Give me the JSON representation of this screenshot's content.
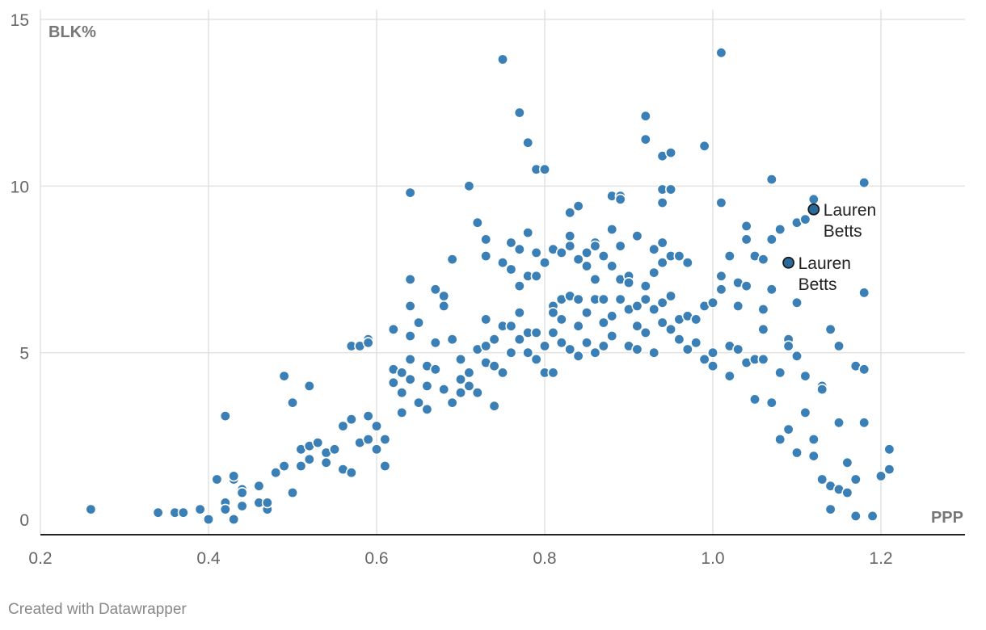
{
  "credit": "Created with Datawrapper",
  "chart_data": {
    "type": "scatter",
    "title": "",
    "xlabel": "PPP",
    "ylabel": "BLK%",
    "xlim": [
      0.2,
      1.3
    ],
    "ylim": [
      0,
      15
    ],
    "x_ticks": [
      "0.2",
      "0.4",
      "0.6",
      "0.8",
      "1.0",
      "1.2"
    ],
    "y_ticks": [
      "0",
      "5",
      "10",
      "15"
    ],
    "grid": true,
    "point_color": "#3a7fb5",
    "highlight_color": "#2a6a9a",
    "highlighted": [
      {
        "label": "Lauren Betts",
        "x": 1.12,
        "y": 9.3
      },
      {
        "label": "Lauren Betts",
        "x": 1.09,
        "y": 7.7
      }
    ],
    "points": [
      [
        0.26,
        0.3
      ],
      [
        0.34,
        0.2
      ],
      [
        0.36,
        0.2
      ],
      [
        0.37,
        0.2
      ],
      [
        0.39,
        0.3
      ],
      [
        0.4,
        0.0
      ],
      [
        0.41,
        1.2
      ],
      [
        0.42,
        3.1
      ],
      [
        0.42,
        0.5
      ],
      [
        0.42,
        0.3
      ],
      [
        0.43,
        1.2
      ],
      [
        0.43,
        1.3
      ],
      [
        0.43,
        0.0
      ],
      [
        0.44,
        0.9
      ],
      [
        0.44,
        0.8
      ],
      [
        0.44,
        0.4
      ],
      [
        0.46,
        1.0
      ],
      [
        0.46,
        0.5
      ],
      [
        0.47,
        0.3
      ],
      [
        0.47,
        0.5
      ],
      [
        0.48,
        1.4
      ],
      [
        0.49,
        4.3
      ],
      [
        0.49,
        1.6
      ],
      [
        0.5,
        3.5
      ],
      [
        0.5,
        0.8
      ],
      [
        0.51,
        2.1
      ],
      [
        0.51,
        1.6
      ],
      [
        0.52,
        4.0
      ],
      [
        0.52,
        2.2
      ],
      [
        0.52,
        1.8
      ],
      [
        0.53,
        2.3
      ],
      [
        0.54,
        2.0
      ],
      [
        0.54,
        1.7
      ],
      [
        0.55,
        2.1
      ],
      [
        0.56,
        1.5
      ],
      [
        0.56,
        2.8
      ],
      [
        0.57,
        5.2
      ],
      [
        0.57,
        3.0
      ],
      [
        0.57,
        1.4
      ],
      [
        0.58,
        5.2
      ],
      [
        0.58,
        2.3
      ],
      [
        0.59,
        5.4
      ],
      [
        0.59,
        5.3
      ],
      [
        0.59,
        3.1
      ],
      [
        0.59,
        2.4
      ],
      [
        0.6,
        2.8
      ],
      [
        0.6,
        2.1
      ],
      [
        0.61,
        1.6
      ],
      [
        0.61,
        2.4
      ],
      [
        0.62,
        5.7
      ],
      [
        0.62,
        4.5
      ],
      [
        0.62,
        4.1
      ],
      [
        0.63,
        3.8
      ],
      [
        0.63,
        4.4
      ],
      [
        0.63,
        3.2
      ],
      [
        0.64,
        9.8
      ],
      [
        0.64,
        7.2
      ],
      [
        0.64,
        6.4
      ],
      [
        0.64,
        5.5
      ],
      [
        0.64,
        4.8
      ],
      [
        0.64,
        4.2
      ],
      [
        0.65,
        5.9
      ],
      [
        0.65,
        3.5
      ],
      [
        0.66,
        4.6
      ],
      [
        0.66,
        4.0
      ],
      [
        0.66,
        3.3
      ],
      [
        0.67,
        6.9
      ],
      [
        0.67,
        5.3
      ],
      [
        0.67,
        4.5
      ],
      [
        0.68,
        6.7
      ],
      [
        0.68,
        6.4
      ],
      [
        0.68,
        3.9
      ],
      [
        0.69,
        7.8
      ],
      [
        0.69,
        5.4
      ],
      [
        0.69,
        3.5
      ],
      [
        0.7,
        4.8
      ],
      [
        0.7,
        4.2
      ],
      [
        0.7,
        3.8
      ],
      [
        0.71,
        10.0
      ],
      [
        0.71,
        4.4
      ],
      [
        0.71,
        4.0
      ],
      [
        0.72,
        8.9
      ],
      [
        0.72,
        5.1
      ],
      [
        0.72,
        3.8
      ],
      [
        0.73,
        8.4
      ],
      [
        0.73,
        7.9
      ],
      [
        0.73,
        6.0
      ],
      [
        0.73,
        5.2
      ],
      [
        0.73,
        4.7
      ],
      [
        0.74,
        5.4
      ],
      [
        0.74,
        4.6
      ],
      [
        0.74,
        3.4
      ],
      [
        0.75,
        13.8
      ],
      [
        0.75,
        7.7
      ],
      [
        0.75,
        5.8
      ],
      [
        0.75,
        4.4
      ],
      [
        0.76,
        8.3
      ],
      [
        0.76,
        7.5
      ],
      [
        0.76,
        5.8
      ],
      [
        0.76,
        5.0
      ],
      [
        0.77,
        12.2
      ],
      [
        0.77,
        8.1
      ],
      [
        0.77,
        7.0
      ],
      [
        0.77,
        6.2
      ],
      [
        0.77,
        5.4
      ],
      [
        0.78,
        11.3
      ],
      [
        0.78,
        8.6
      ],
      [
        0.78,
        7.3
      ],
      [
        0.78,
        5.6
      ],
      [
        0.78,
        5.0
      ],
      [
        0.79,
        10.5
      ],
      [
        0.79,
        8.0
      ],
      [
        0.79,
        7.3
      ],
      [
        0.79,
        5.6
      ],
      [
        0.79,
        4.8
      ],
      [
        0.8,
        10.5
      ],
      [
        0.8,
        7.7
      ],
      [
        0.8,
        5.2
      ],
      [
        0.8,
        4.4
      ],
      [
        0.81,
        8.1
      ],
      [
        0.81,
        6.4
      ],
      [
        0.81,
        6.2
      ],
      [
        0.81,
        5.6
      ],
      [
        0.81,
        4.4
      ],
      [
        0.82,
        8.0
      ],
      [
        0.82,
        6.6
      ],
      [
        0.82,
        6.0
      ],
      [
        0.82,
        5.3
      ],
      [
        0.83,
        9.2
      ],
      [
        0.83,
        8.5
      ],
      [
        0.83,
        8.2
      ],
      [
        0.83,
        6.7
      ],
      [
        0.83,
        5.1
      ],
      [
        0.84,
        9.4
      ],
      [
        0.84,
        7.8
      ],
      [
        0.84,
        6.6
      ],
      [
        0.84,
        5.8
      ],
      [
        0.84,
        4.9
      ],
      [
        0.85,
        8.0
      ],
      [
        0.85,
        7.6
      ],
      [
        0.85,
        6.2
      ],
      [
        0.85,
        5.3
      ],
      [
        0.86,
        8.3
      ],
      [
        0.86,
        8.2
      ],
      [
        0.86,
        7.2
      ],
      [
        0.86,
        6.6
      ],
      [
        0.86,
        5.0
      ],
      [
        0.87,
        7.9
      ],
      [
        0.87,
        6.6
      ],
      [
        0.87,
        5.9
      ],
      [
        0.87,
        5.2
      ],
      [
        0.88,
        9.7
      ],
      [
        0.88,
        8.7
      ],
      [
        0.88,
        7.6
      ],
      [
        0.88,
        6.1
      ],
      [
        0.88,
        5.5
      ],
      [
        0.89,
        9.7
      ],
      [
        0.89,
        9.6
      ],
      [
        0.89,
        8.2
      ],
      [
        0.89,
        7.2
      ],
      [
        0.89,
        6.6
      ],
      [
        0.9,
        7.3
      ],
      [
        0.9,
        7.1
      ],
      [
        0.9,
        6.3
      ],
      [
        0.9,
        5.2
      ],
      [
        0.91,
        8.5
      ],
      [
        0.91,
        6.4
      ],
      [
        0.91,
        5.8
      ],
      [
        0.91,
        5.1
      ],
      [
        0.92,
        12.1
      ],
      [
        0.92,
        11.4
      ],
      [
        0.92,
        7.0
      ],
      [
        0.92,
        6.6
      ],
      [
        0.92,
        5.6
      ],
      [
        0.93,
        8.1
      ],
      [
        0.93,
        7.4
      ],
      [
        0.93,
        6.3
      ],
      [
        0.93,
        5.0
      ],
      [
        0.94,
        10.9
      ],
      [
        0.94,
        9.9
      ],
      [
        0.94,
        9.5
      ],
      [
        0.94,
        8.3
      ],
      [
        0.94,
        7.7
      ],
      [
        0.94,
        6.5
      ],
      [
        0.94,
        5.9
      ],
      [
        0.95,
        11.0
      ],
      [
        0.95,
        9.9
      ],
      [
        0.95,
        7.9
      ],
      [
        0.95,
        6.7
      ],
      [
        0.95,
        5.7
      ],
      [
        0.96,
        7.9
      ],
      [
        0.96,
        6.0
      ],
      [
        0.96,
        5.4
      ],
      [
        0.97,
        7.7
      ],
      [
        0.97,
        6.1
      ],
      [
        0.97,
        5.1
      ],
      [
        0.98,
        6.0
      ],
      [
        0.98,
        5.3
      ],
      [
        0.99,
        11.2
      ],
      [
        0.99,
        6.4
      ],
      [
        0.99,
        4.8
      ],
      [
        1.0,
        6.5
      ],
      [
        1.0,
        5.0
      ],
      [
        1.0,
        4.6
      ],
      [
        1.01,
        14.0
      ],
      [
        1.01,
        9.5
      ],
      [
        1.01,
        7.3
      ],
      [
        1.01,
        6.9
      ],
      [
        1.02,
        7.9
      ],
      [
        1.02,
        5.2
      ],
      [
        1.02,
        4.3
      ],
      [
        1.03,
        7.1
      ],
      [
        1.03,
        6.4
      ],
      [
        1.03,
        5.1
      ],
      [
        1.04,
        8.8
      ],
      [
        1.04,
        8.4
      ],
      [
        1.04,
        7.0
      ],
      [
        1.04,
        4.7
      ],
      [
        1.05,
        7.9
      ],
      [
        1.05,
        4.8
      ],
      [
        1.05,
        3.6
      ],
      [
        1.06,
        7.8
      ],
      [
        1.06,
        6.3
      ],
      [
        1.06,
        5.7
      ],
      [
        1.06,
        4.8
      ],
      [
        1.07,
        10.2
      ],
      [
        1.07,
        8.4
      ],
      [
        1.07,
        6.9
      ],
      [
        1.07,
        3.5
      ],
      [
        1.08,
        8.7
      ],
      [
        1.08,
        4.4
      ],
      [
        1.08,
        2.4
      ],
      [
        1.09,
        5.4
      ],
      [
        1.09,
        5.2
      ],
      [
        1.09,
        2.7
      ],
      [
        1.1,
        8.9
      ],
      [
        1.1,
        6.5
      ],
      [
        1.1,
        4.9
      ],
      [
        1.1,
        2.0
      ],
      [
        1.11,
        9.0
      ],
      [
        1.11,
        4.3
      ],
      [
        1.11,
        3.2
      ],
      [
        1.12,
        9.6
      ],
      [
        1.12,
        2.4
      ],
      [
        1.12,
        1.9
      ],
      [
        1.13,
        4.0
      ],
      [
        1.13,
        3.9
      ],
      [
        1.13,
        1.2
      ],
      [
        1.14,
        5.7
      ],
      [
        1.14,
        1.0
      ],
      [
        1.14,
        0.3
      ],
      [
        1.15,
        5.2
      ],
      [
        1.15,
        2.9
      ],
      [
        1.15,
        0.9
      ],
      [
        1.16,
        1.7
      ],
      [
        1.16,
        0.8
      ],
      [
        1.17,
        4.6
      ],
      [
        1.17,
        1.2
      ],
      [
        1.17,
        0.1
      ],
      [
        1.18,
        10.1
      ],
      [
        1.18,
        6.8
      ],
      [
        1.18,
        4.5
      ],
      [
        1.18,
        2.9
      ],
      [
        1.19,
        0.1
      ],
      [
        1.2,
        1.3
      ],
      [
        1.21,
        2.1
      ],
      [
        1.21,
        1.5
      ]
    ]
  }
}
